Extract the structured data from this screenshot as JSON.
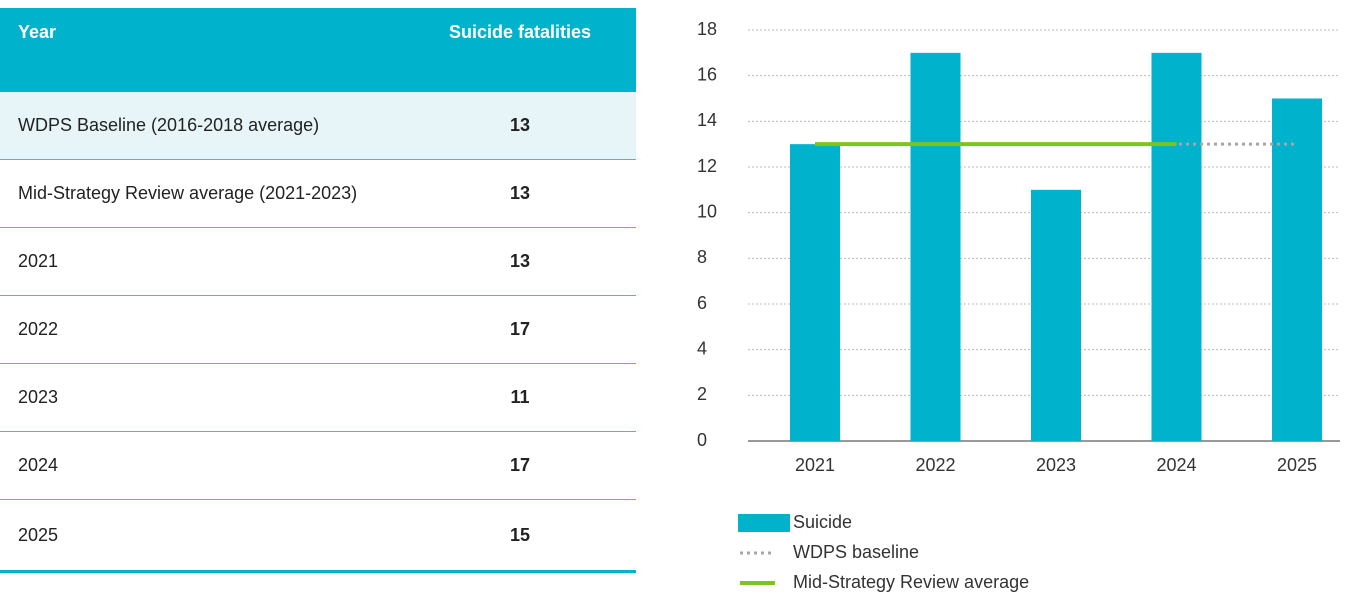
{
  "table": {
    "header": [
      "Year",
      "Suicide fatalities"
    ],
    "rows": [
      [
        "WDPS Baseline (2016-2018 average)",
        13
      ],
      [
        "Mid-Strategy Review average (2021-2023)",
        13
      ],
      [
        "2021",
        13
      ],
      [
        "2022",
        17
      ],
      [
        "2023",
        11
      ],
      [
        "2024",
        17
      ],
      [
        "2025",
        15
      ]
    ]
  },
  "chart_data": {
    "type": "bar",
    "categories": [
      "2021",
      "2022",
      "2023",
      "2024",
      "2025"
    ],
    "series": [
      {
        "name": "Suicide",
        "type": "bar",
        "color": "#00b2cc",
        "values": [
          13,
          17,
          11,
          17,
          15
        ]
      },
      {
        "name": "WDPS baseline",
        "type": "line",
        "style": "dotted",
        "color": "#a6a6a6",
        "values": [
          13,
          13,
          13,
          13,
          13
        ]
      },
      {
        "name": "Mid-Strategy Review average",
        "type": "line",
        "style": "solid",
        "color": "#7cc520",
        "values": [
          13,
          13,
          13,
          13,
          null
        ]
      }
    ],
    "ylim": [
      0,
      18
    ],
    "yticks": [
      0,
      2,
      4,
      6,
      8,
      10,
      12,
      14,
      16,
      18
    ],
    "grid": true,
    "legend": "bottom"
  }
}
